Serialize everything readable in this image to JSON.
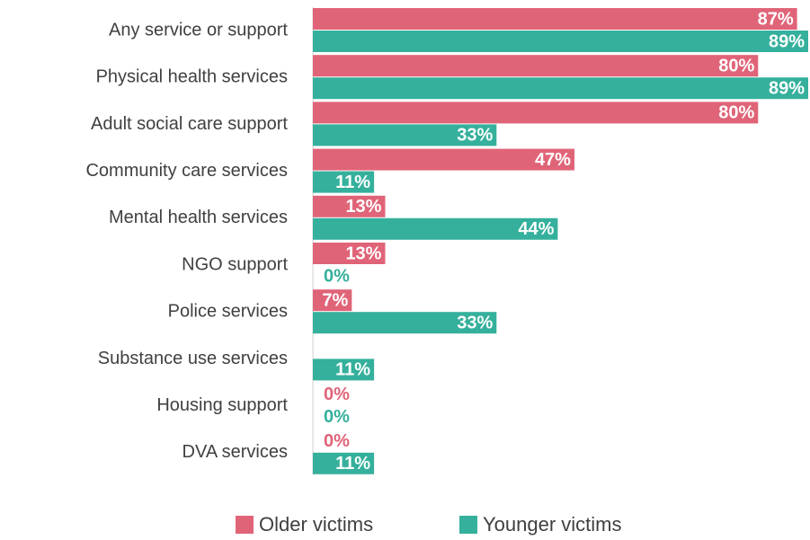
{
  "chart_data": {
    "type": "bar",
    "orientation": "horizontal",
    "categories": [
      "Any service or support",
      "Physical health services",
      "Adult social care support",
      "Community care services",
      "Mental health services",
      "NGO support",
      "Police services",
      "Substance use services",
      "Housing support",
      "DVA services"
    ],
    "series": [
      {
        "name": "Older victims",
        "color": "#e06478",
        "values": [
          87,
          80,
          80,
          47,
          13,
          13,
          7,
          null,
          0,
          0
        ],
        "value_labels": [
          "87%",
          "80%",
          "80%",
          "47%",
          "13%",
          "13%",
          "7%",
          null,
          "0%",
          "0%"
        ]
      },
      {
        "name": "Younger victims",
        "color": "#35b09c",
        "values": [
          89,
          89,
          33,
          11,
          44,
          0,
          33,
          11,
          0,
          11
        ],
        "value_labels": [
          "89%",
          "89%",
          "33%",
          "11%",
          "44%",
          "0%",
          "33%",
          "11%",
          "0%",
          "11%"
        ]
      }
    ],
    "legend": "bottom"
  }
}
